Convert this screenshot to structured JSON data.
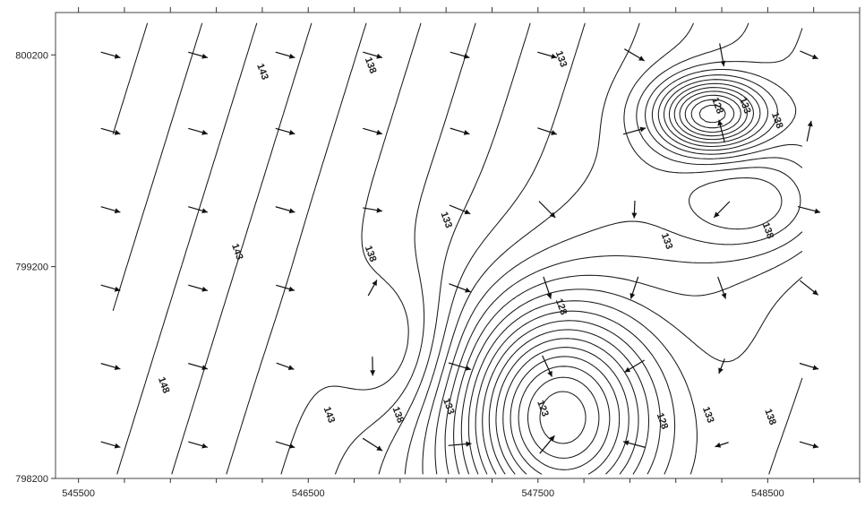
{
  "chart_data": {
    "type": "contour",
    "title": "",
    "xlabel": "",
    "ylabel": "",
    "xlim": [
      545400,
      548900
    ],
    "ylim": [
      798200,
      800400
    ],
    "x_ticks": [
      545500,
      546500,
      547500,
      548500
    ],
    "y_ticks": [
      798200,
      799200,
      800200
    ],
    "x_tick_labels": [
      "545500",
      "546500",
      "547500",
      "548500"
    ],
    "y_tick_labels": [
      "798200",
      "799200",
      "800200"
    ],
    "contour_interval": 1,
    "contour_labels": [
      {
        "text": "143",
        "x": 546300,
        "y": 800120
      },
      {
        "text": "138",
        "x": 546770,
        "y": 800150
      },
      {
        "text": "133",
        "x": 547600,
        "y": 800180
      },
      {
        "text": "128",
        "x": 548280,
        "y": 799960
      },
      {
        "text": "133",
        "x": 548400,
        "y": 799960
      },
      {
        "text": "138",
        "x": 548540,
        "y": 799890
      },
      {
        "text": "133",
        "x": 547100,
        "y": 799420
      },
      {
        "text": "138",
        "x": 546770,
        "y": 799260
      },
      {
        "text": "143",
        "x": 546190,
        "y": 799270
      },
      {
        "text": "133",
        "x": 548060,
        "y": 799320
      },
      {
        "text": "138",
        "x": 548500,
        "y": 799370
      },
      {
        "text": "128",
        "x": 547600,
        "y": 799010
      },
      {
        "text": "148",
        "x": 545870,
        "y": 798640
      },
      {
        "text": "143",
        "x": 546590,
        "y": 798500
      },
      {
        "text": "138",
        "x": 546890,
        "y": 798500
      },
      {
        "text": "133",
        "x": 547110,
        "y": 798540
      },
      {
        "text": "123",
        "x": 547520,
        "y": 798530
      },
      {
        "text": "128",
        "x": 548040,
        "y": 798470
      },
      {
        "text": "133",
        "x": 548240,
        "y": 798500
      },
      {
        "text": "138",
        "x": 548510,
        "y": 798490
      }
    ],
    "flow_vectors": {
      "description_rows_y": [
        800200,
        799840,
        799470,
        799100,
        798730,
        798360
      ],
      "columns_x": [
        545640,
        546020,
        546400,
        546780,
        547160,
        547540,
        547920,
        548300,
        548680,
        549000
      ]
    },
    "grid": false,
    "legend": "none"
  }
}
